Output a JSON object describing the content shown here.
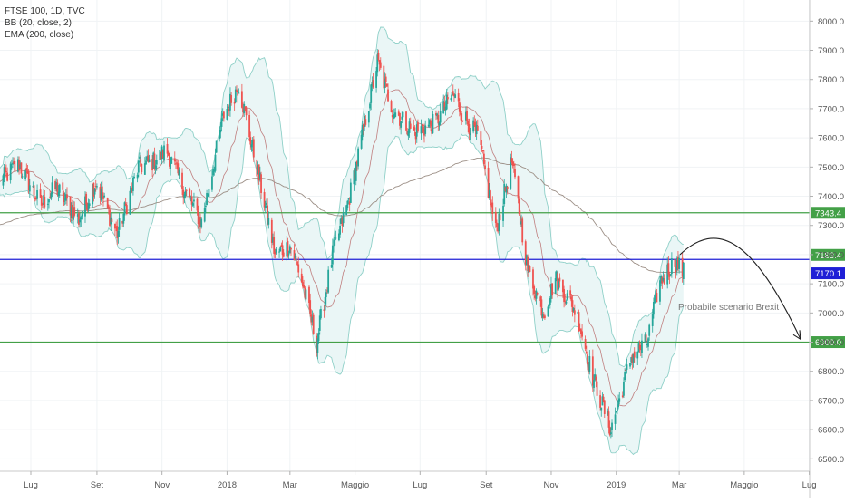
{
  "legend": {
    "symbol": "FTSE 100, 1D, TVC",
    "bb": "BB (20, close, 2)",
    "ema": "EMA (200, close)"
  },
  "chart_data": {
    "type": "candlestick",
    "ylim": [
      6470,
      8060
    ],
    "y_ticks": [
      {
        "value": 8000,
        "label": "8000.0"
      },
      {
        "value": 7900,
        "label": "7900.0"
      },
      {
        "value": 7800,
        "label": "7800.0"
      },
      {
        "value": 7700,
        "label": "7700.0"
      },
      {
        "value": 7600,
        "label": "7600.0"
      },
      {
        "value": 7500,
        "label": "7500.0"
      },
      {
        "value": 7400,
        "label": "7400.0"
      },
      {
        "value": 7300,
        "label": "7300.0"
      },
      {
        "value": 7200,
        "label": "7200.0"
      },
      {
        "value": 7100,
        "label": "7100.0"
      },
      {
        "value": 7000,
        "label": "7000.0"
      },
      {
        "value": 6900,
        "label": "6900.0"
      },
      {
        "value": 6800,
        "label": "6800.0"
      },
      {
        "value": 6700,
        "label": "6700.0"
      },
      {
        "value": 6600,
        "label": "6600.0"
      },
      {
        "value": 6500,
        "label": "6500.0"
      }
    ],
    "x_ticks": [
      "Lug",
      "Set",
      "Nov",
      "2018",
      "Mar",
      "Maggio",
      "Lug",
      "Set",
      "Nov",
      "2019",
      "Mar",
      "Maggio",
      "Lug"
    ],
    "months_start": "2017-06",
    "months_end": "2019-08",
    "horizontal_levels": [
      {
        "value": 7343.4,
        "label": "7343.4",
        "color": "#43a047",
        "label_bg": "#43a047",
        "label_text": "#ffffff"
      },
      {
        "value": 7183.4,
        "label": "7183.4",
        "color": "#1f1fd6",
        "label_bg": "#43a047",
        "label_text": "#ffffff"
      },
      {
        "value": 7170.1,
        "label": "7170.1",
        "color": "#1f1fd6",
        "label_bg": "#1f1fd6",
        "label_text": "#ffffff"
      },
      {
        "value": 6900.0,
        "label": "6900.0",
        "color": "#43a047",
        "label_bg": "#43a047",
        "label_text": "#ffffff"
      }
    ],
    "annotation": {
      "text": "Probabile scenario Brexit"
    },
    "colors": {
      "up": "#26a69a",
      "down": "#ef5350",
      "bands": "#8fd0c8",
      "band_fill": "#eaf6f6",
      "basis": "#b25757",
      "ema": "#9c8f86"
    },
    "price_path": [
      [
        "2017-06-01",
        7450
      ],
      [
        "2017-06-20",
        7510
      ],
      [
        "2017-07-10",
        7370
      ],
      [
        "2017-07-25",
        7430
      ],
      [
        "2017-08-15",
        7320
      ],
      [
        "2017-08-31",
        7450
      ],
      [
        "2017-09-20",
        7270
      ],
      [
        "2017-10-10",
        7500
      ],
      [
        "2017-10-25",
        7520
      ],
      [
        "2017-11-05",
        7560
      ],
      [
        "2017-11-25",
        7400
      ],
      [
        "2017-12-08",
        7310
      ],
      [
        "2017-12-29",
        7680
      ],
      [
        "2018-01-12",
        7780
      ],
      [
        "2018-02-05",
        7380
      ],
      [
        "2018-02-15",
        7200
      ],
      [
        "2018-03-01",
        7230
      ],
      [
        "2018-03-10",
        7140
      ],
      [
        "2018-03-26",
        6900
      ],
      [
        "2018-04-10",
        7200
      ],
      [
        "2018-04-26",
        7400
      ],
      [
        "2018-05-22",
        7860
      ],
      [
        "2018-06-05",
        7700
      ],
      [
        "2018-06-25",
        7620
      ],
      [
        "2018-07-15",
        7650
      ],
      [
        "2018-08-01",
        7750
      ],
      [
        "2018-08-10",
        7680
      ],
      [
        "2018-08-25",
        7600
      ],
      [
        "2018-09-10",
        7280
      ],
      [
        "2018-09-25",
        7520
      ],
      [
        "2018-10-10",
        7150
      ],
      [
        "2018-10-25",
        7000
      ],
      [
        "2018-11-05",
        7120
      ],
      [
        "2018-11-25",
        7000
      ],
      [
        "2018-12-10",
        6780
      ],
      [
        "2018-12-27",
        6600
      ],
      [
        "2019-01-15",
        6850
      ],
      [
        "2019-01-30",
        6900
      ],
      [
        "2019-02-10",
        7100
      ],
      [
        "2019-02-25",
        7180
      ],
      [
        "2019-03-05",
        7140
      ]
    ],
    "series": [
      {
        "name": "FTSE 100, 1D, TVC",
        "style": "candles"
      },
      {
        "name": "BB (20, close, 2)",
        "style": "band"
      },
      {
        "name": "EMA (200, close)",
        "style": "line"
      }
    ]
  }
}
